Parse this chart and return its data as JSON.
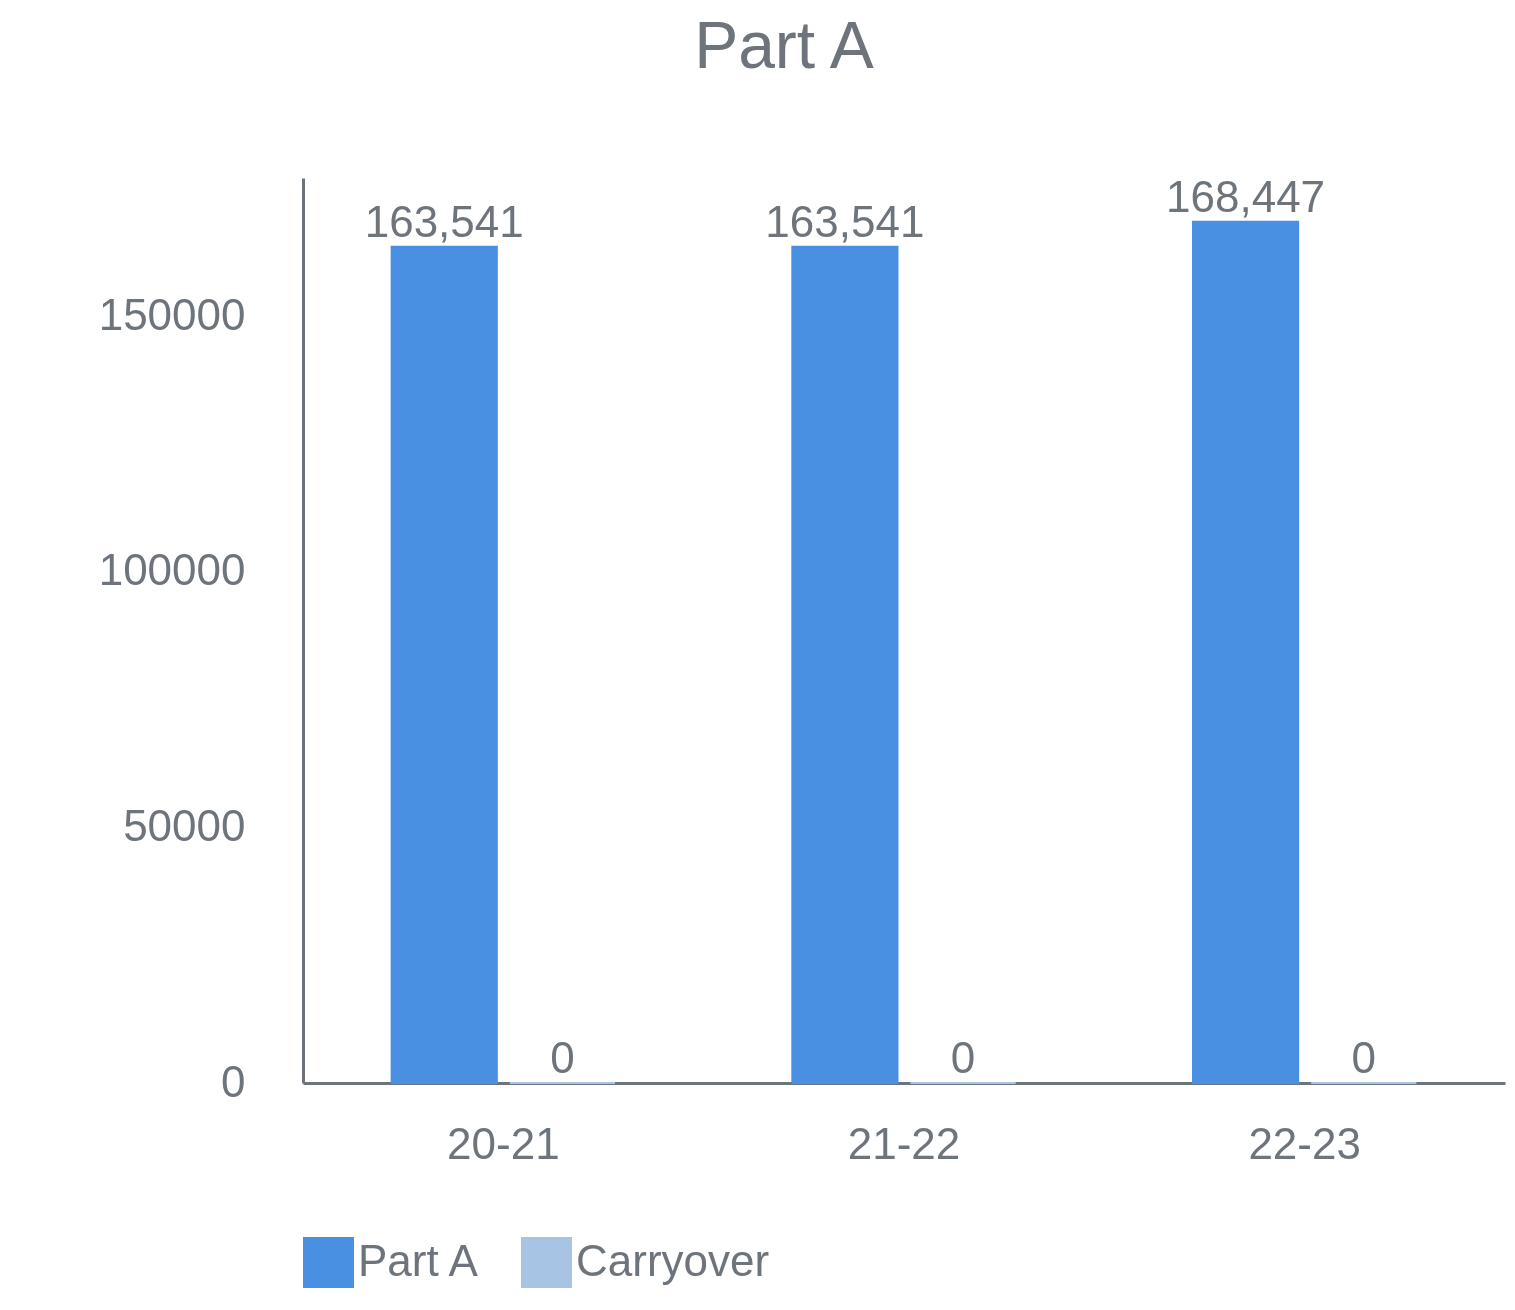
{
  "chart_data": {
    "type": "bar",
    "title": "Part A",
    "categories": [
      "20-21",
      "21-22",
      "22-23"
    ],
    "series": [
      {
        "name": "Part A",
        "color": "#4a90e2",
        "values": [
          163541,
          163541,
          168447
        ],
        "value_labels": [
          "163,541",
          "163,541",
          "168,447"
        ]
      },
      {
        "name": "Carryover",
        "color": "#a8c4e5",
        "values": [
          0,
          0,
          0
        ],
        "value_labels": [
          "0",
          "0",
          "0"
        ]
      }
    ],
    "ylim": [
      0,
      177000
    ],
    "yticks": [
      0,
      50000,
      100000,
      150000
    ],
    "grid": false,
    "legend": "bottom"
  }
}
